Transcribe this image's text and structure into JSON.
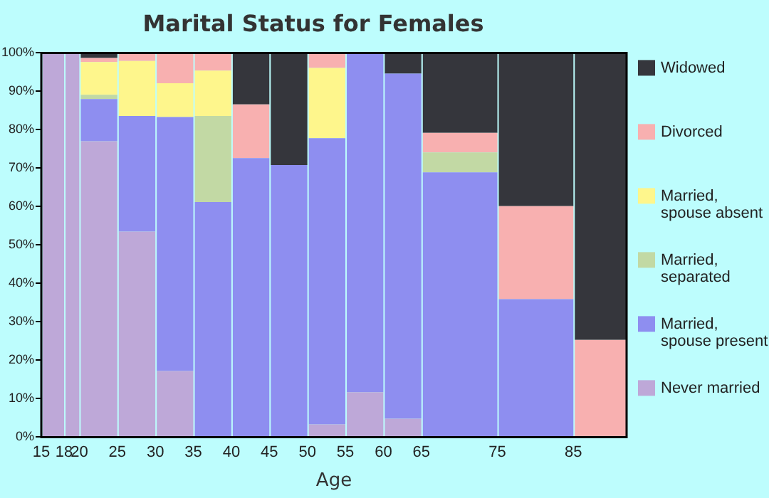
{
  "chart_data": {
    "type": "bar",
    "stacked": true,
    "title": "Marital Status for Females",
    "xlabel": "Age",
    "x": [
      16.5,
      19,
      22.5,
      27.5,
      32.5,
      37.5,
      42.5,
      47.5,
      52.5,
      57.5,
      62.5,
      70,
      80,
      88.5
    ],
    "series": [
      {
        "name": "Never married",
        "color": "#bea8d8",
        "values": [
          100,
          100,
          77.0,
          53.5,
          17.2,
          0,
          0,
          0,
          3.3,
          11.7,
          4.8,
          0,
          0,
          0
        ]
      },
      {
        "name": "Married, spouse present",
        "color": "#8e8ef0",
        "values": [
          0,
          0,
          11.0,
          30.1,
          66.1,
          61.2,
          72.6,
          70.8,
          74.5,
          88.3,
          89.8,
          68.9,
          35.9,
          0
        ]
      },
      {
        "name": "Married, separated",
        "color": "#c2d9a4",
        "values": [
          0,
          0,
          1.1,
          0,
          0,
          22.4,
          0,
          0,
          0,
          0,
          0,
          5.2,
          0,
          0
        ]
      },
      {
        "name": "Married, spouse absent",
        "color": "#fef68c",
        "values": [
          0,
          0,
          8.5,
          14.3,
          8.8,
          11.8,
          0,
          0,
          18.3,
          0,
          0,
          0,
          0,
          0
        ]
      },
      {
        "name": "Divorced",
        "color": "#f8b0b0",
        "values": [
          0,
          0,
          1.1,
          2.1,
          7.9,
          4.6,
          14.0,
          0,
          3.9,
          0,
          0,
          5.1,
          24.2,
          25.3
        ]
      },
      {
        "name": "Widowed",
        "color": "#35363c",
        "values": [
          0,
          0,
          1.3,
          0,
          0,
          0,
          13.4,
          29.2,
          0,
          0,
          5.4,
          20.8,
          39.9,
          74.7
        ]
      }
    ],
    "xlim": [
      15,
      92
    ],
    "xticks": [
      15,
      18,
      20,
      25,
      30,
      35,
      40,
      45,
      50,
      55,
      60,
      65,
      75,
      85
    ],
    "ylim": [
      0,
      100
    ],
    "yticks": [
      {
        "value": 0,
        "label": "0%"
      },
      {
        "value": 10,
        "label": "10%"
      },
      {
        "value": 20,
        "label": "20%"
      },
      {
        "value": 30,
        "label": "30%"
      },
      {
        "value": 40,
        "label": "40%"
      },
      {
        "value": 50,
        "label": "50%"
      },
      {
        "value": 60,
        "label": "60%"
      },
      {
        "value": 70,
        "label": "70%"
      },
      {
        "value": 80,
        "label": "80%"
      },
      {
        "value": 90,
        "label": "90%"
      },
      {
        "value": 100,
        "label": "100%"
      }
    ],
    "grid": false,
    "legend": "right"
  }
}
